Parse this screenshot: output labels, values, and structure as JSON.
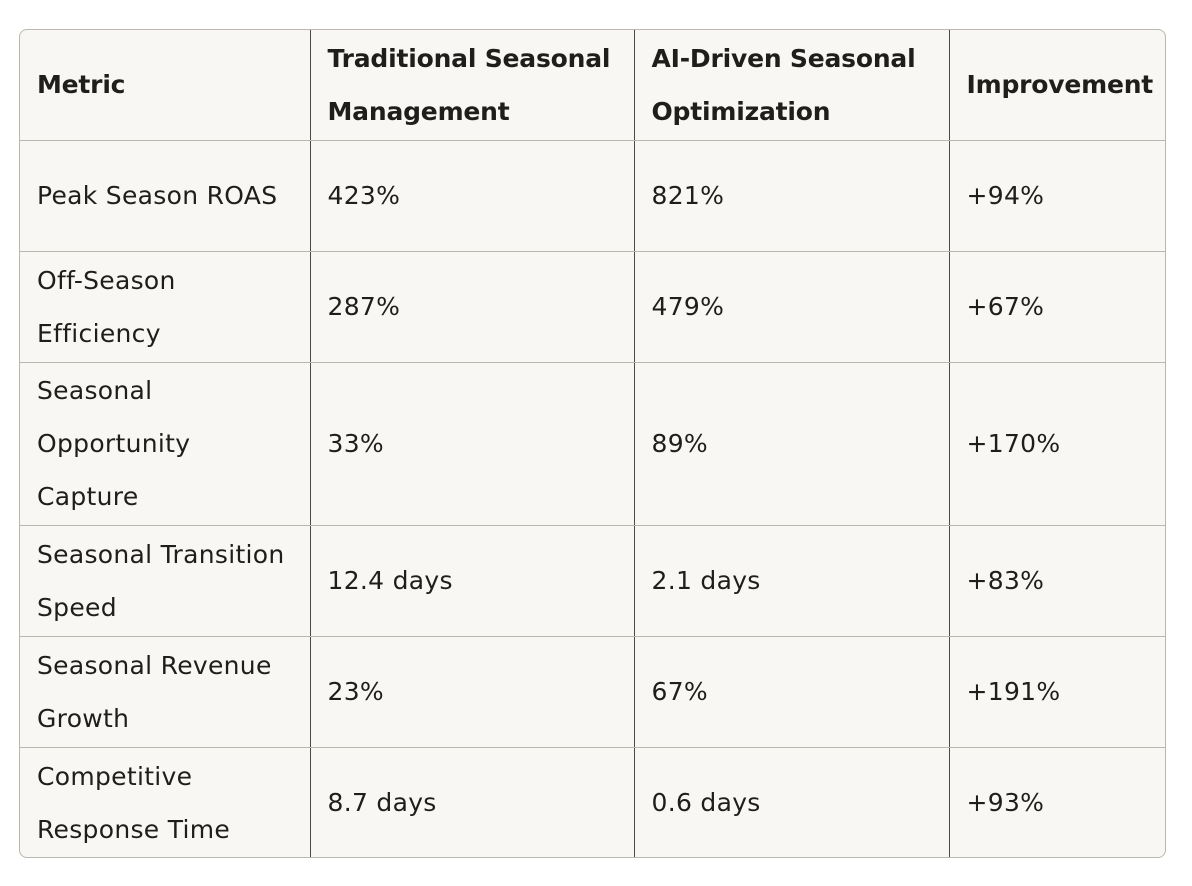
{
  "table": {
    "headers": [
      "Metric",
      "Traditional Seasonal Management",
      "AI-Driven Seasonal Optimization",
      "Improvement"
    ],
    "rows": [
      {
        "metric": "Peak Season ROAS",
        "traditional": "423%",
        "ai": "821%",
        "improvement": "+94%"
      },
      {
        "metric": "Off-Season Efficiency",
        "traditional": "287%",
        "ai": "479%",
        "improvement": "+67%"
      },
      {
        "metric": "Seasonal Opportunity Capture",
        "traditional": "33%",
        "ai": "89%",
        "improvement": "+170%"
      },
      {
        "metric": "Seasonal Transition Speed",
        "traditional": "12.4 days",
        "ai": "2.1 days",
        "improvement": "+83%"
      },
      {
        "metric": "Seasonal Revenue Growth",
        "traditional": "23%",
        "ai": "67%",
        "improvement": "+191%"
      },
      {
        "metric": "Competitive Response Time",
        "traditional": "8.7 days",
        "ai": "0.6 days",
        "improvement": "+93%"
      }
    ]
  }
}
